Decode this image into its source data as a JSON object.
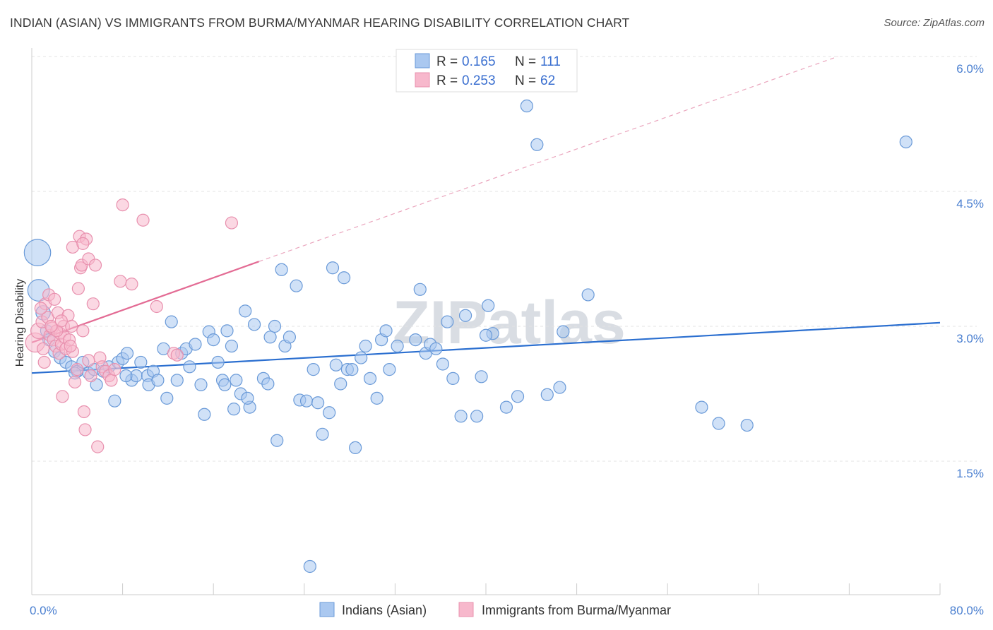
{
  "header": {
    "title": "INDIAN (ASIAN) VS IMMIGRANTS FROM BURMA/MYANMAR HEARING DISABILITY CORRELATION CHART",
    "source": "Source: ZipAtlas.com"
  },
  "colors": {
    "blue_fill": "#aac8f0",
    "blue_stroke": "#6a9ad8",
    "blue_line": "#2b6fd0",
    "pink_fill": "#f7b8cc",
    "pink_stroke": "#e890ae",
    "pink_line": "#e36b94",
    "tick_text": "#4a7fd0"
  },
  "chart_data": {
    "type": "scatter",
    "title": "INDIAN (ASIAN) VS IMMIGRANTS FROM BURMA/MYANMAR HEARING DISABILITY CORRELATION CHART",
    "xlabel": "",
    "ylabel": "Hearing Disability",
    "xlim": [
      0,
      80
    ],
    "ylim": [
      0,
      6.3
    ],
    "x_tick_labels": [
      "0.0%",
      "80.0%"
    ],
    "y_ticks": [
      1.5,
      3.0,
      4.5,
      6.0
    ],
    "y_tick_labels": [
      "1.5%",
      "3.0%",
      "4.5%",
      "6.0%"
    ],
    "grid": true,
    "legend": {
      "placement": "top-center",
      "rows": [
        {
          "r_label": "R = ",
          "r_value": "0.165",
          "n_label": "N = ",
          "n_value": "111"
        },
        {
          "r_label": "R = ",
          "r_value": "0.253",
          "n_label": "N = ",
          "n_value": "62"
        }
      ]
    },
    "bottom_legend": [
      "Indians (Asian)",
      "Immigrants from Burma/Myanmar"
    ],
    "watermark": "ZIPatlas",
    "series": [
      {
        "name": "Indians (Asian)",
        "trend": {
          "x0": 0,
          "y0": 2.48,
          "x1": 80,
          "y1": 3.04
        },
        "points": [
          [
            0.5,
            3.82,
            2.2
          ],
          [
            0.6,
            3.4,
            1.8
          ],
          [
            1.0,
            3.15,
            1.2
          ],
          [
            1.3,
            2.95,
            1
          ],
          [
            1.5,
            2.85,
            1
          ],
          [
            2.0,
            2.72,
            1
          ],
          [
            2.5,
            2.65,
            1
          ],
          [
            3.0,
            2.6,
            1
          ],
          [
            3.5,
            2.55,
            1
          ],
          [
            4.0,
            2.5,
            1
          ],
          [
            4.5,
            2.6,
            1
          ],
          [
            5.0,
            2.48,
            1
          ],
          [
            5.5,
            2.52,
            1
          ],
          [
            5.7,
            2.35,
            1
          ],
          [
            6.3,
            2.5,
            1
          ],
          [
            6.8,
            2.55,
            1
          ],
          [
            7.3,
            2.17,
            1
          ],
          [
            7.6,
            2.6,
            1
          ],
          [
            8.0,
            2.64,
            1
          ],
          [
            8.4,
            2.7,
            1
          ],
          [
            8.8,
            2.4,
            1
          ],
          [
            9.2,
            2.45,
            1
          ],
          [
            9.6,
            2.6,
            1
          ],
          [
            10.2,
            2.45,
            1
          ],
          [
            10.3,
            2.35,
            1
          ],
          [
            10.7,
            2.5,
            1
          ],
          [
            11.1,
            2.4,
            1
          ],
          [
            11.6,
            2.75,
            1
          ],
          [
            11.9,
            2.2,
            1
          ],
          [
            12.3,
            3.05,
            1
          ],
          [
            12.8,
            2.4,
            1
          ],
          [
            13.2,
            2.7,
            1
          ],
          [
            13.6,
            2.75,
            1
          ],
          [
            13.9,
            2.55,
            1
          ],
          [
            14.4,
            2.8,
            1
          ],
          [
            14.9,
            2.35,
            1
          ],
          [
            15.2,
            2.02,
            1
          ],
          [
            15.6,
            2.94,
            1
          ],
          [
            16.0,
            2.85,
            1
          ],
          [
            16.4,
            2.6,
            1
          ],
          [
            16.8,
            2.4,
            1
          ],
          [
            17.2,
            2.95,
            1
          ],
          [
            17.6,
            2.78,
            1
          ],
          [
            18.0,
            2.4,
            1
          ],
          [
            18.4,
            2.25,
            1
          ],
          [
            18.8,
            3.17,
            1
          ],
          [
            19.2,
            2.1,
            1
          ],
          [
            19.6,
            3.02,
            1
          ],
          [
            20.4,
            2.42,
            1
          ],
          [
            20.8,
            2.36,
            1
          ],
          [
            21.0,
            2.88,
            1
          ],
          [
            21.4,
            3.0,
            1
          ],
          [
            21.6,
            1.73,
            1
          ],
          [
            22.0,
            3.63,
            1
          ],
          [
            22.3,
            2.78,
            1
          ],
          [
            22.7,
            2.88,
            1
          ],
          [
            23.3,
            3.45,
            1
          ],
          [
            23.6,
            2.18,
            1
          ],
          [
            24.2,
            2.17,
            1
          ],
          [
            24.5,
            0.33,
            1
          ],
          [
            24.8,
            2.52,
            1
          ],
          [
            25.2,
            2.15,
            1
          ],
          [
            25.6,
            1.8,
            1
          ],
          [
            26.2,
            2.04,
            1
          ],
          [
            26.5,
            3.65,
            1
          ],
          [
            26.8,
            2.57,
            1
          ],
          [
            27.2,
            2.36,
            1
          ],
          [
            27.5,
            3.54,
            1
          ],
          [
            27.8,
            2.52,
            1
          ],
          [
            28.2,
            2.52,
            1
          ],
          [
            28.5,
            1.65,
            1
          ],
          [
            29.0,
            2.65,
            1
          ],
          [
            29.4,
            2.78,
            1
          ],
          [
            29.8,
            2.42,
            1
          ],
          [
            30.4,
            2.2,
            1
          ],
          [
            30.8,
            2.85,
            1
          ],
          [
            31.2,
            2.95,
            1
          ],
          [
            31.5,
            2.52,
            1
          ],
          [
            32.2,
            2.78,
            1
          ],
          [
            33.8,
            2.85,
            1
          ],
          [
            34.2,
            3.41,
            1
          ],
          [
            34.7,
            2.7,
            1
          ],
          [
            35.1,
            2.8,
            1
          ],
          [
            35.6,
            2.75,
            1
          ],
          [
            36.2,
            2.58,
            1
          ],
          [
            36.6,
            3.05,
            1
          ],
          [
            37.1,
            2.42,
            1
          ],
          [
            37.8,
            2.0,
            1
          ],
          [
            38.2,
            3.12,
            1
          ],
          [
            39.2,
            2.0,
            1
          ],
          [
            39.6,
            2.44,
            1
          ],
          [
            40.2,
            3.23,
            1
          ],
          [
            40.6,
            2.92,
            1
          ],
          [
            41.8,
            2.1,
            1
          ],
          [
            42.8,
            2.22,
            1
          ],
          [
            43.6,
            5.45,
            1
          ],
          [
            44.5,
            5.02,
            1
          ],
          [
            45.4,
            2.24,
            1
          ],
          [
            46.5,
            2.32,
            1
          ],
          [
            46.8,
            2.94,
            1
          ],
          [
            49.0,
            3.35,
            1
          ],
          [
            59.0,
            2.1,
            1
          ],
          [
            60.5,
            1.92,
            1
          ],
          [
            63.0,
            1.9,
            1
          ],
          [
            77.0,
            5.05,
            1
          ],
          [
            3.8,
            2.48,
            1
          ],
          [
            8.3,
            2.45,
            1
          ],
          [
            17.8,
            2.08,
            1
          ],
          [
            40.0,
            2.9,
            1
          ],
          [
            19.0,
            2.2,
            1
          ],
          [
            17.0,
            2.35,
            1
          ]
        ]
      },
      {
        "name": "Immigrants from Burma/Myanmar",
        "trend": {
          "x0": 0,
          "y0": 2.82,
          "x1": 20,
          "y1": 3.72
        },
        "trend_ext": {
          "x0": 20,
          "y0": 3.72,
          "x1": 71,
          "y1": 6.0
        },
        "points": [
          [
            0.3,
            2.82,
            1.6
          ],
          [
            0.6,
            2.95,
            1.3
          ],
          [
            0.9,
            3.05,
            1
          ],
          [
            1.0,
            2.75,
            1
          ],
          [
            1.2,
            3.25,
            1
          ],
          [
            1.4,
            3.1,
            1
          ],
          [
            1.5,
            3.35,
            1
          ],
          [
            1.6,
            2.9,
            1
          ],
          [
            1.8,
            2.98,
            1
          ],
          [
            1.9,
            2.85,
            1
          ],
          [
            2.0,
            3.3,
            1
          ],
          [
            2.1,
            2.78,
            1
          ],
          [
            2.3,
            3.15,
            1
          ],
          [
            2.4,
            2.7,
            1
          ],
          [
            2.5,
            2.92,
            1
          ],
          [
            2.6,
            2.8,
            1
          ],
          [
            2.7,
            2.22,
            1
          ],
          [
            2.8,
            3.0,
            1
          ],
          [
            2.9,
            2.88,
            1
          ],
          [
            3.0,
            2.75,
            1
          ],
          [
            3.2,
            3.12,
            1
          ],
          [
            3.3,
            2.85,
            1
          ],
          [
            3.5,
            3.0,
            1
          ],
          [
            3.6,
            2.72,
            1
          ],
          [
            3.8,
            2.38,
            1
          ],
          [
            4.0,
            2.52,
            1
          ],
          [
            4.1,
            3.42,
            1
          ],
          [
            4.2,
            4.0,
            1
          ],
          [
            4.3,
            3.65,
            1
          ],
          [
            4.4,
            3.68,
            1
          ],
          [
            4.5,
            2.95,
            1
          ],
          [
            4.6,
            2.05,
            1
          ],
          [
            4.7,
            1.85,
            1
          ],
          [
            4.8,
            3.97,
            1
          ],
          [
            5.0,
            3.75,
            1
          ],
          [
            5.2,
            2.45,
            1
          ],
          [
            5.4,
            3.25,
            1
          ],
          [
            5.6,
            3.68,
            1
          ],
          [
            5.8,
            1.66,
            1
          ],
          [
            6.0,
            2.65,
            1
          ],
          [
            6.2,
            2.55,
            1
          ],
          [
            6.5,
            2.5,
            1
          ],
          [
            6.8,
            2.45,
            1
          ],
          [
            7.0,
            2.4,
            1
          ],
          [
            7.3,
            2.52,
            1
          ],
          [
            7.8,
            3.5,
            1
          ],
          [
            8.0,
            4.35,
            1
          ],
          [
            8.8,
            3.47,
            1
          ],
          [
            9.8,
            4.18,
            1
          ],
          [
            11.0,
            3.22,
            1
          ],
          [
            12.5,
            2.7,
            1
          ],
          [
            12.8,
            2.68,
            1
          ],
          [
            17.6,
            4.15,
            1
          ],
          [
            3.6,
            3.88,
            1
          ],
          [
            4.5,
            3.92,
            1
          ],
          [
            1.1,
            2.6,
            1
          ],
          [
            2.2,
            2.95,
            1
          ],
          [
            3.4,
            2.78,
            1
          ],
          [
            0.8,
            3.2,
            1
          ],
          [
            1.7,
            3.0,
            1
          ],
          [
            2.6,
            3.06,
            1
          ],
          [
            5.0,
            2.62,
            1
          ]
        ]
      }
    ]
  }
}
